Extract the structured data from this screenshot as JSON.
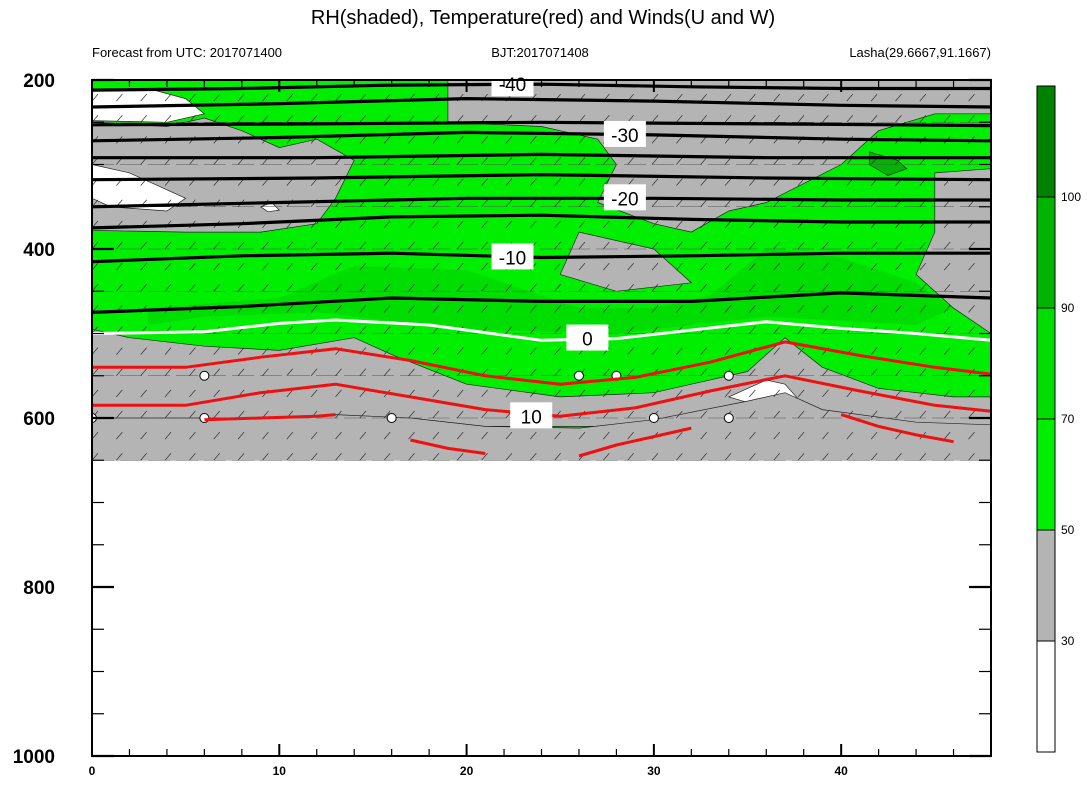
{
  "chart_data": {
    "type": "contour",
    "title": "RH(shaded), Temperature(red) and Winds(U and W)",
    "left_string": "Forecast from UTC: 2017071400",
    "center_string": "BJT:2017071408",
    "right_string": "Lasha(29.6667,91.1667)",
    "x": {
      "range": [
        0,
        48
      ],
      "major_ticks": [
        0,
        10,
        20,
        30,
        40
      ],
      "minor_step": 2
    },
    "y": {
      "range": [
        200,
        1000
      ],
      "major_ticks": [
        200,
        400,
        600,
        800,
        1000
      ],
      "minor_step": 50
    },
    "colorbar": {
      "levels": [
        30,
        50,
        70,
        90,
        100
      ],
      "colors": [
        "#ffffff",
        "#b4b4b4",
        "#00ee00",
        "#00dd00",
        "#00b400",
        "#008200"
      ]
    },
    "shading": {
      "ground_level_hpa": 650,
      "white_patches": [
        [
          [
            0,
            212
          ],
          [
            3,
            210
          ],
          [
            5,
            222
          ],
          [
            6,
            240
          ],
          [
            4,
            250
          ],
          [
            0,
            248
          ]
        ],
        [
          [
            0,
            300
          ],
          [
            2,
            310
          ],
          [
            3.5,
            325
          ],
          [
            5,
            340
          ],
          [
            4,
            355
          ],
          [
            1,
            350
          ],
          [
            0,
            340
          ]
        ],
        [
          [
            9,
            350
          ],
          [
            9.6,
            345
          ],
          [
            10,
            354
          ],
          [
            9.4,
            356
          ]
        ],
        [
          [
            36,
            555
          ],
          [
            37,
            560
          ],
          [
            38,
            585
          ],
          [
            36,
            588
          ],
          [
            34,
            575
          ]
        ]
      ],
      "gray_patches": [
        [
          [
            0,
            250
          ],
          [
            4,
            255
          ],
          [
            6,
            245
          ],
          [
            8,
            260
          ],
          [
            10,
            280
          ],
          [
            12,
            270
          ],
          [
            14,
            295
          ],
          [
            13,
            340
          ],
          [
            12,
            370
          ],
          [
            9,
            380
          ],
          [
            5,
            380
          ],
          [
            0,
            378
          ]
        ],
        [
          [
            0,
            495
          ],
          [
            2,
            505
          ],
          [
            6,
            515
          ],
          [
            10,
            520
          ],
          [
            14,
            505
          ],
          [
            16,
            525
          ],
          [
            20,
            560
          ],
          [
            25,
            575
          ],
          [
            30,
            570
          ],
          [
            32,
            560
          ],
          [
            35,
            545
          ],
          [
            37,
            505
          ],
          [
            39,
            540
          ],
          [
            42,
            565
          ],
          [
            46,
            575
          ],
          [
            48,
            575
          ],
          [
            48,
            610
          ],
          [
            0,
            610
          ]
        ],
        [
          [
            19,
            250
          ],
          [
            24,
            255
          ],
          [
            27,
            270
          ],
          [
            28,
            300
          ],
          [
            27,
            345
          ],
          [
            30,
            370
          ],
          [
            32,
            380
          ],
          [
            34,
            355
          ],
          [
            36,
            345
          ],
          [
            40,
            300
          ],
          [
            42,
            260
          ],
          [
            45,
            240
          ],
          [
            48,
            240
          ],
          [
            48,
            200
          ],
          [
            19,
            200
          ]
        ],
        [
          [
            45,
            310
          ],
          [
            48,
            305
          ],
          [
            48,
            500
          ],
          [
            46,
            470
          ],
          [
            44,
            430
          ],
          [
            45,
            380
          ]
        ],
        [
          [
            26,
            380
          ],
          [
            30,
            400
          ],
          [
            32,
            440
          ],
          [
            28,
            450
          ],
          [
            25,
            430
          ]
        ]
      ],
      "darkgreen_patches": [
        [
          [
            41.5,
            285
          ],
          [
            43,
            295
          ],
          [
            43.5,
            305
          ],
          [
            42.5,
            313
          ],
          [
            41.5,
            300
          ]
        ]
      ]
    },
    "contours_black": [
      {
        "label": "-40",
        "pts": [
          [
            0,
            212
          ],
          [
            8,
            210
          ],
          [
            16,
            206
          ],
          [
            24,
            205
          ],
          [
            32,
            208
          ],
          [
            40,
            210
          ],
          [
            48,
            210
          ]
        ]
      },
      {
        "label": "",
        "pts": [
          [
            0,
            232
          ],
          [
            10,
            228
          ],
          [
            20,
            222
          ],
          [
            30,
            225
          ],
          [
            40,
            230
          ],
          [
            48,
            232
          ]
        ]
      },
      {
        "label": "",
        "pts": [
          [
            0,
            253
          ],
          [
            12,
            252
          ],
          [
            24,
            250
          ],
          [
            36,
            252
          ],
          [
            48,
            254
          ]
        ]
      },
      {
        "label": "-30",
        "pts": [
          [
            0,
            272
          ],
          [
            10,
            268
          ],
          [
            20,
            262
          ],
          [
            30,
            265
          ],
          [
            40,
            270
          ],
          [
            48,
            272
          ]
        ]
      },
      {
        "label": "",
        "pts": [
          [
            0,
            292
          ],
          [
            12,
            292
          ],
          [
            24,
            288
          ],
          [
            36,
            292
          ],
          [
            48,
            292
          ]
        ]
      },
      {
        "label": "",
        "pts": [
          [
            0,
            318
          ],
          [
            12,
            316
          ],
          [
            24,
            312
          ],
          [
            36,
            316
          ],
          [
            48,
            318
          ]
        ]
      },
      {
        "label": "-20",
        "pts": [
          [
            0,
            350
          ],
          [
            10,
            345
          ],
          [
            20,
            340
          ],
          [
            30,
            340
          ],
          [
            40,
            342
          ],
          [
            48,
            342
          ]
        ]
      },
      {
        "label": "",
        "pts": [
          [
            0,
            375
          ],
          [
            8,
            370
          ],
          [
            16,
            362
          ],
          [
            24,
            360
          ],
          [
            32,
            365
          ],
          [
            40,
            368
          ],
          [
            48,
            368
          ]
        ]
      },
      {
        "label": "-10",
        "pts": [
          [
            0,
            415
          ],
          [
            8,
            408
          ],
          [
            16,
            405
          ],
          [
            24,
            410
          ],
          [
            32,
            408
          ],
          [
            40,
            405
          ],
          [
            48,
            405
          ]
        ]
      },
      {
        "label": "",
        "pts": [
          [
            0,
            475
          ],
          [
            8,
            468
          ],
          [
            16,
            458
          ],
          [
            24,
            462
          ],
          [
            32,
            462
          ],
          [
            40,
            452
          ],
          [
            48,
            458
          ]
        ]
      }
    ],
    "contours_white": [
      {
        "label": "0",
        "pts": [
          [
            0,
            500
          ],
          [
            6,
            498
          ],
          [
            10,
            488
          ],
          [
            13,
            484
          ],
          [
            18,
            490
          ],
          [
            24,
            508
          ],
          [
            28,
            506
          ],
          [
            32,
            496
          ],
          [
            36,
            486
          ],
          [
            40,
            494
          ],
          [
            44,
            500
          ],
          [
            48,
            508
          ]
        ]
      }
    ],
    "contours_red": [
      {
        "label": "",
        "pts": [
          [
            0,
            540
          ],
          [
            5,
            540
          ],
          [
            9,
            528
          ],
          [
            13,
            518
          ],
          [
            17,
            532
          ],
          [
            21,
            550
          ],
          [
            25,
            560
          ],
          [
            29,
            552
          ],
          [
            33,
            534
          ],
          [
            37,
            510
          ],
          [
            41,
            526
          ],
          [
            45,
            540
          ],
          [
            48,
            548
          ]
        ]
      },
      {
        "label": "10",
        "pts": [
          [
            0,
            585
          ],
          [
            5,
            585
          ],
          [
            9,
            570
          ],
          [
            13,
            560
          ],
          [
            17,
            575
          ],
          [
            21,
            590
          ],
          [
            25,
            598
          ],
          [
            29,
            588
          ],
          [
            33,
            568
          ],
          [
            37,
            550
          ],
          [
            41,
            568
          ],
          [
            45,
            585
          ],
          [
            48,
            592
          ]
        ]
      },
      {
        "label": "",
        "pts": [
          [
            6,
            602
          ],
          [
            9,
            600
          ],
          [
            12,
            598
          ],
          [
            13,
            596
          ]
        ]
      },
      {
        "label": "",
        "pts": [
          [
            17,
            626
          ],
          [
            19,
            636
          ],
          [
            21,
            642
          ]
        ]
      },
      {
        "label": "",
        "pts": [
          [
            26,
            645
          ],
          [
            28,
            632
          ],
          [
            30,
            622
          ],
          [
            32,
            612
          ]
        ]
      },
      {
        "label": "",
        "pts": [
          [
            40,
            596
          ],
          [
            42,
            610
          ],
          [
            44,
            620
          ],
          [
            46,
            628
          ]
        ]
      }
    ]
  }
}
